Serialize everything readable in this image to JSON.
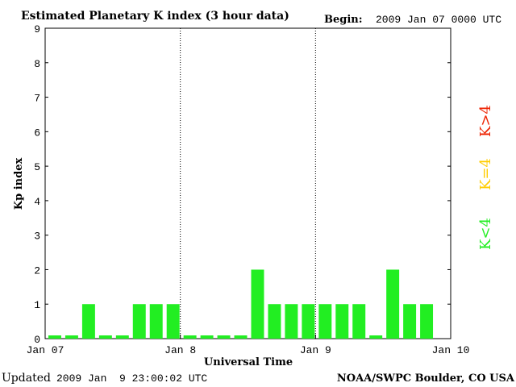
{
  "header": {
    "title": "Estimated Planetary K index (3 hour data)",
    "begin_label": "Begin:",
    "begin_value": "2009 Jan 07 0000 UTC"
  },
  "footer": {
    "updated_label": "Updated",
    "updated_value": "2009 Jan  9 23:00:02 UTC",
    "source": "NOAA/SWPC Boulder, CO USA"
  },
  "legend": {
    "items": [
      {
        "label": "K<4",
        "color": "#22ee22"
      },
      {
        "label": "K=4",
        "color": "#ffcc00"
      },
      {
        "label": "K>4",
        "color": "#ee2200"
      }
    ]
  },
  "colors": {
    "bar": "#22ee22",
    "axis": "#000000",
    "divider": "#000000"
  },
  "chart_data": {
    "type": "bar",
    "title": "Estimated Planetary K index (3 hour data)",
    "xlabel": "Universal Time",
    "ylabel": "Kp index",
    "ylim": [
      0,
      9
    ],
    "yticks": [
      "0",
      "1",
      "2",
      "3",
      "4",
      "5",
      "6",
      "7",
      "8",
      "9"
    ],
    "xticks": [
      "Jan 07",
      "Jan 8",
      "Jan 9",
      "Jan 10"
    ],
    "bar_interval_hours": 3,
    "day_dividers": [
      "Jan 8",
      "Jan 9"
    ],
    "values": [
      0,
      0,
      1,
      0,
      0,
      1,
      1,
      1,
      0,
      0,
      0,
      0,
      2,
      1,
      1,
      1,
      1,
      1,
      1,
      0,
      2,
      1,
      1
    ],
    "grid": false
  }
}
